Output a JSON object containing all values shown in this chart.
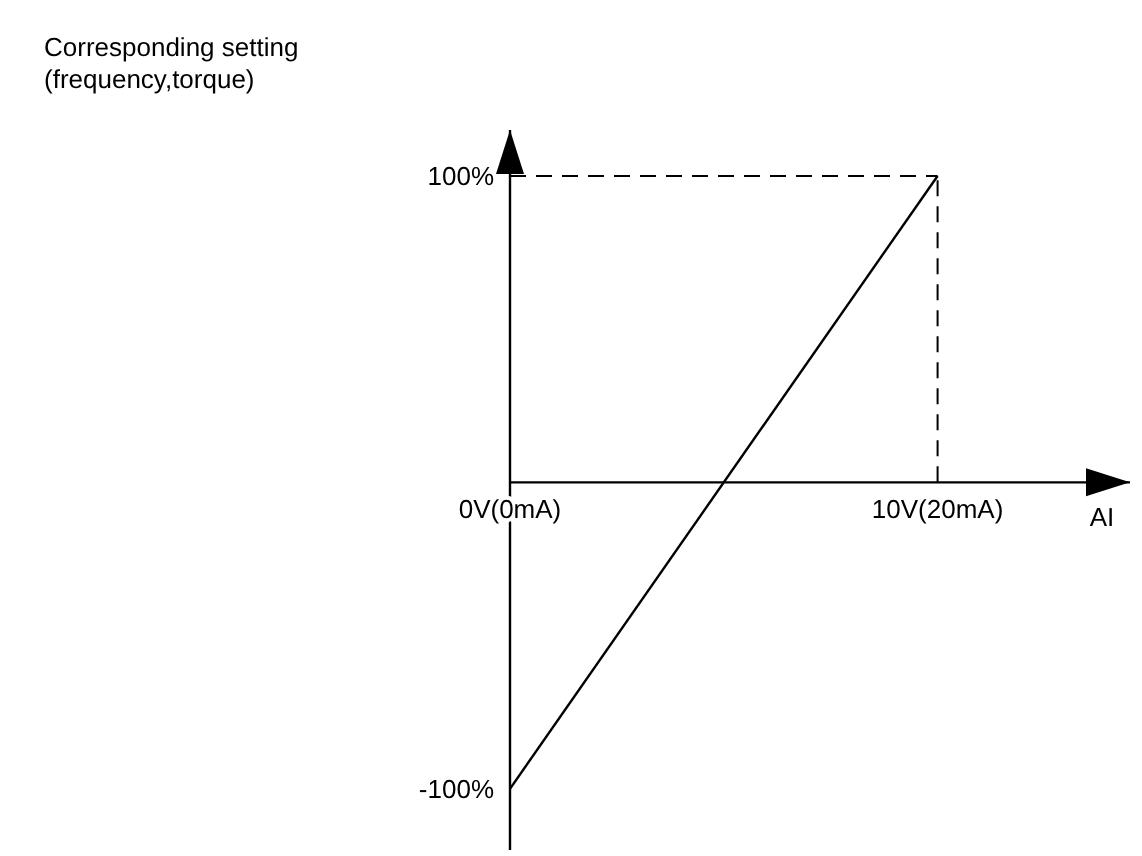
{
  "chart_data": {
    "type": "line",
    "ylabel": "Corresponding setting (frequency,torque)",
    "xlabel": "AI",
    "categories": [
      "0V(0mA)",
      "10V(20mA)"
    ],
    "series": [
      {
        "color": "#000000",
        "values": [
          -100,
          100
        ]
      }
    ],
    "ylim": [
      -120,
      115
    ],
    "yticks": [
      {
        "value": -100,
        "label": "-100%"
      },
      {
        "value": 100,
        "label": "100%"
      }
    ],
    "ref_lines": [
      {
        "axis": "y",
        "value": 100,
        "line_style": "dashed",
        "color": "#000000"
      },
      {
        "axis": "x",
        "value": "10V(20mA)",
        "line_style": "dashed",
        "color": "#000000"
      }
    ],
    "marker": "none",
    "grid": false,
    "legend": false
  }
}
